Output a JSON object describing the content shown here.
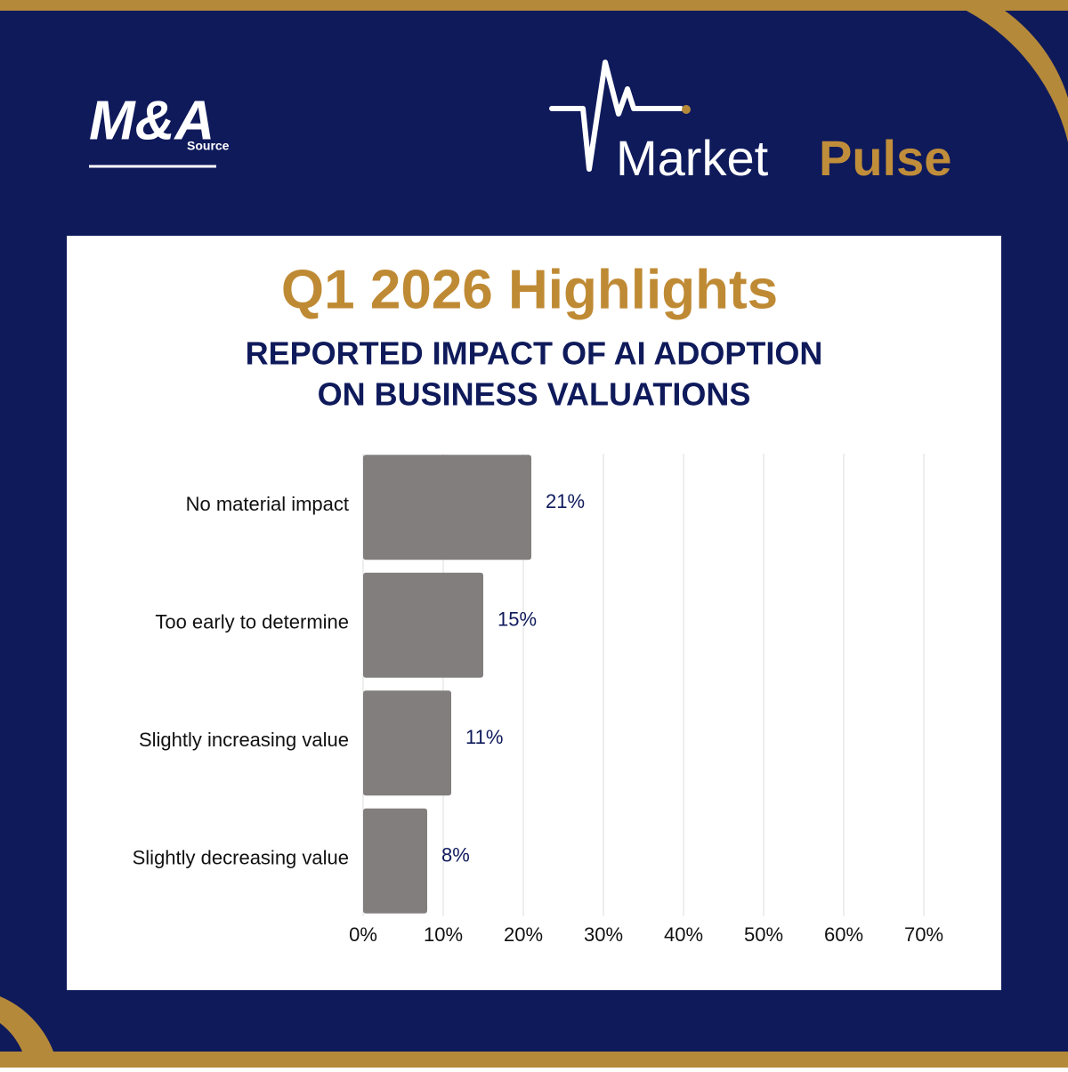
{
  "header": {
    "logo": "M&A",
    "logo_sub": "Source",
    "brand_1": "Market",
    "brand_2": "Pulse"
  },
  "chart_data": {
    "type": "bar",
    "orientation": "horizontal",
    "title": "Q1 2026 Highlights",
    "subtitle": [
      "REPORTED IMPACT OF AI ADOPTION",
      "ON BUSINESS VALUATIONS"
    ],
    "categories": [
      "No material impact",
      "Too early to determine",
      "Slightly increasing value",
      "Slightly decreasing value"
    ],
    "values": [
      21,
      15,
      11,
      8
    ],
    "value_labels": [
      "21%",
      "15%",
      "11%",
      "8%"
    ],
    "color": "#827e7d",
    "xlim": [
      0,
      70
    ],
    "xticks": [
      {
        "value": 0,
        "label": "0%"
      },
      {
        "value": 10,
        "label": "10%"
      },
      {
        "value": 20,
        "label": "20%"
      },
      {
        "value": 30,
        "label": "30%"
      },
      {
        "value": 40,
        "label": "40%"
      },
      {
        "value": 50,
        "label": "50%"
      },
      {
        "value": 60,
        "label": "60%"
      },
      {
        "value": 70,
        "label": "70%"
      }
    ],
    "grid": true
  }
}
